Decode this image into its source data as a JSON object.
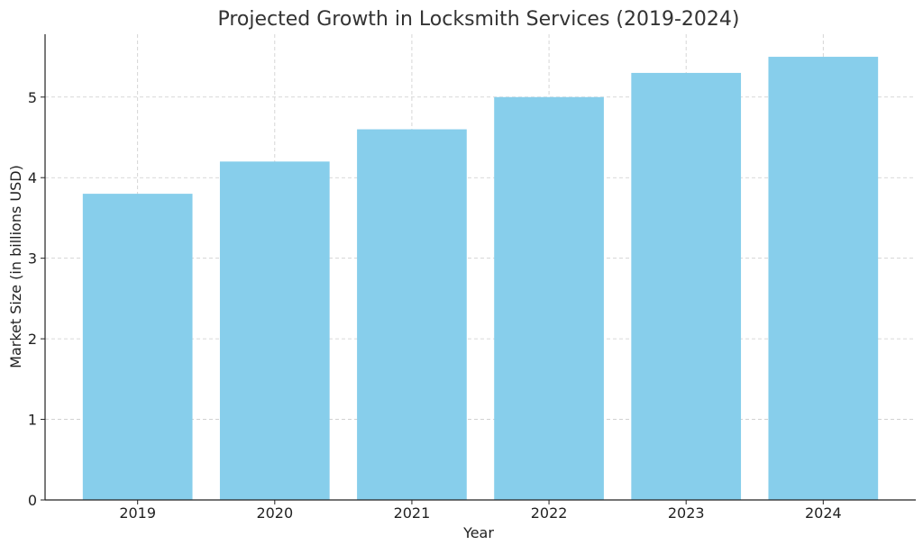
{
  "chart_data": {
    "type": "bar",
    "title": "Projected Growth in Locksmith Services (2019-2024)",
    "xlabel": "Year",
    "ylabel": "Market Size (in billions USD)",
    "categories": [
      "2019",
      "2020",
      "2021",
      "2022",
      "2023",
      "2024"
    ],
    "values": [
      3.8,
      4.2,
      4.6,
      5.0,
      5.3,
      5.5
    ],
    "ylim": [
      0,
      5.78
    ],
    "yticks": [
      0,
      1,
      2,
      3,
      4,
      5
    ],
    "grid": true,
    "bar_color": "#87CEEB"
  }
}
